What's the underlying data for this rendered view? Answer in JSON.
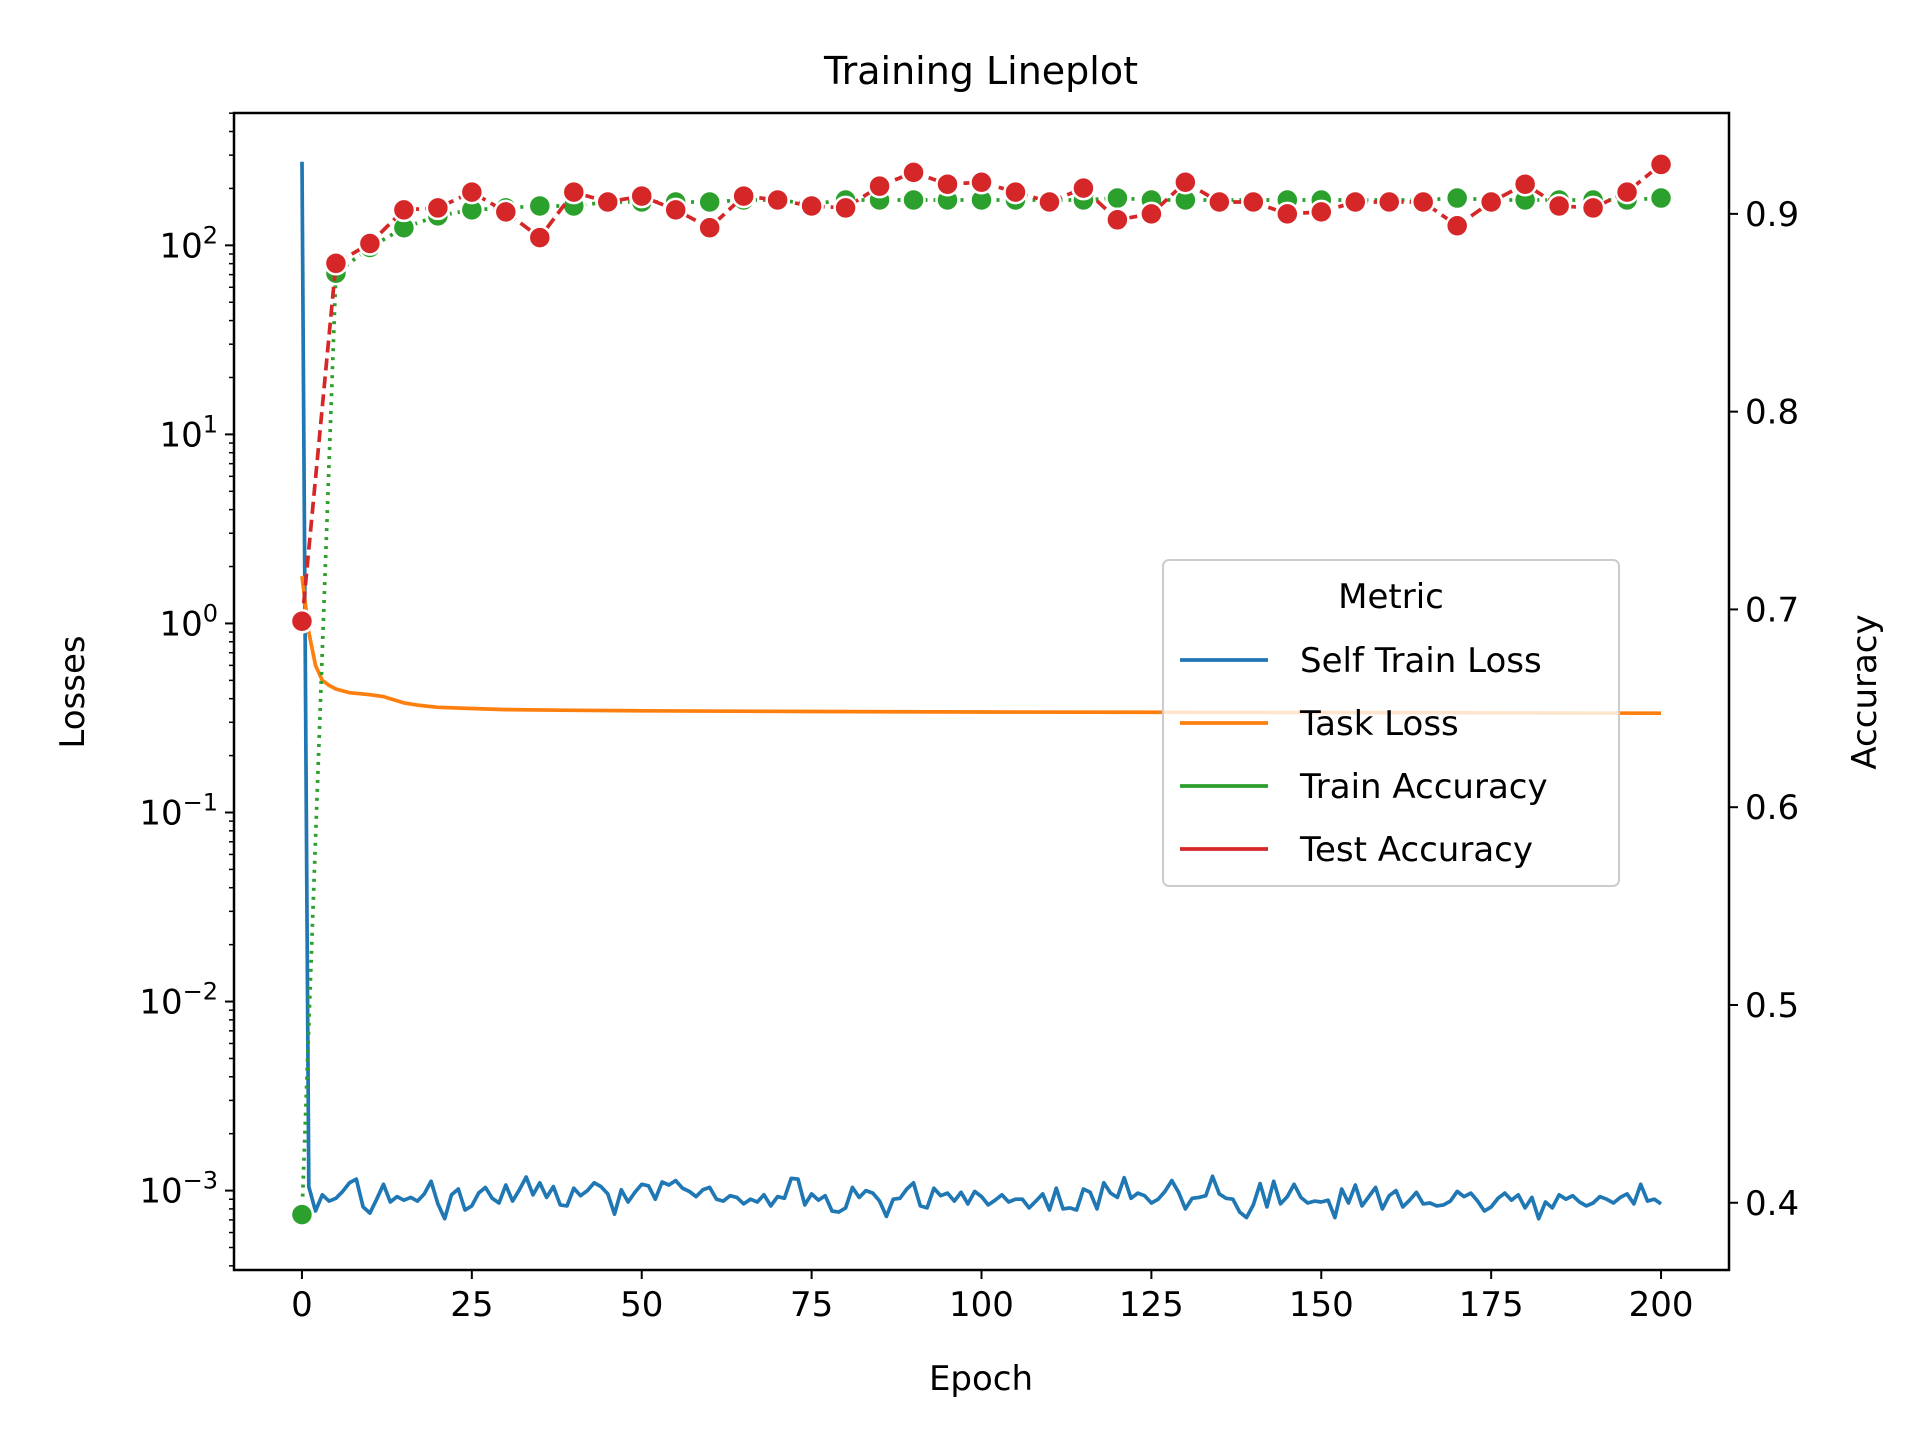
{
  "chart_data": {
    "type": "line",
    "title": "Training Lineplot",
    "xlabel": "Epoch",
    "ylabel_left": "Losses",
    "ylabel_right": "Accuracy",
    "xlim": [
      -10,
      210
    ],
    "xticks": [
      0,
      25,
      50,
      75,
      100,
      125,
      150,
      175,
      200
    ],
    "ylim_left_log10": [
      -3.42,
      2.7
    ],
    "yticks_left": [
      {
        "exp": "2",
        "value": 100
      },
      {
        "exp": "1",
        "value": 10
      },
      {
        "exp": "0",
        "value": 1
      },
      {
        "exp": "−1",
        "value": 0.1
      },
      {
        "exp": "−2",
        "value": 0.01
      },
      {
        "exp": "−3",
        "value": 0.001
      }
    ],
    "ytick_left_base": "10",
    "ylim_right": [
      0.366,
      0.951
    ],
    "yticks_right": [
      "0.4",
      "0.5",
      "0.6",
      "0.7",
      "0.8",
      "0.9"
    ],
    "grid": false,
    "legend": {
      "title": "Metric",
      "placement": "center-right",
      "entries": [
        "Self Train Loss",
        "Task Loss",
        "Train Accuracy",
        "Test Accuracy"
      ]
    },
    "colors": {
      "self_train_loss": "#1f77b4",
      "task_loss": "#ff7f0e",
      "train_accuracy": "#2ca02c",
      "test_accuracy": "#d62728"
    },
    "series": [
      {
        "name": "Self Train Loss",
        "axis": "left",
        "x_start": 0,
        "x_step": 1,
        "values": [
          277,
          0.00105,
          0.00078,
          0.00095,
          0.00088,
          0.00091,
          0.00099,
          0.0011,
          0.00115,
          0.00082,
          0.00076,
          0.0009,
          0.00108,
          0.00087,
          0.00093,
          0.00089,
          0.00092,
          0.00088,
          0.00096,
          0.00112,
          0.00085,
          0.00071,
          0.00095,
          0.00102,
          0.00079,
          0.00083,
          0.00097,
          0.00104,
          0.00091,
          0.00086,
          0.00107,
          0.00088,
          0.00101,
          0.00118,
          0.00095,
          0.0011,
          0.00092,
          0.00105,
          0.00084,
          0.00083,
          0.00103,
          0.00094,
          0.001,
          0.0011,
          0.00105,
          0.00096,
          0.00075,
          0.00101,
          0.00087,
          0.00098,
          0.00108,
          0.00106,
          0.0009,
          0.00111,
          0.00107,
          0.00113,
          0.00103,
          0.00099,
          0.00093,
          0.00101,
          0.00104,
          0.0009,
          0.00088,
          0.00094,
          0.00092,
          0.00085,
          0.0009,
          0.00087,
          0.00095,
          0.00083,
          0.00093,
          0.00091,
          0.00116,
          0.00115,
          0.00084,
          0.00096,
          0.00089,
          0.00094,
          0.00078,
          0.00077,
          0.00081,
          0.00104,
          0.00092,
          0.001,
          0.00097,
          0.00088,
          0.00073,
          0.0009,
          0.00091,
          0.00102,
          0.0011,
          0.00083,
          0.00081,
          0.00103,
          0.00094,
          0.00097,
          0.00088,
          0.00098,
          0.00085,
          0.00099,
          0.00093,
          0.00084,
          0.00089,
          0.00095,
          0.00087,
          0.0009,
          0.0009,
          0.00081,
          0.00088,
          0.00096,
          0.00079,
          0.00103,
          0.0008,
          0.00081,
          0.00079,
          0.00102,
          0.00098,
          0.0008,
          0.0011,
          0.00097,
          0.00092,
          0.00117,
          0.00091,
          0.00097,
          0.00094,
          0.00086,
          0.0009,
          0.00099,
          0.00113,
          0.00098,
          0.0008,
          0.00091,
          0.00092,
          0.00094,
          0.00119,
          0.00096,
          0.00091,
          0.0009,
          0.00077,
          0.00072,
          0.00084,
          0.00109,
          0.00082,
          0.00112,
          0.00085,
          0.00093,
          0.00108,
          0.00092,
          0.00086,
          0.00088,
          0.00087,
          0.00089,
          0.00072,
          0.00102,
          0.00086,
          0.00107,
          0.00083,
          0.00093,
          0.00104,
          0.0008,
          0.00094,
          0.001,
          0.00082,
          0.00089,
          0.00098,
          0.00085,
          0.00086,
          0.00083,
          0.00084,
          0.00088,
          0.00099,
          0.00093,
          0.00097,
          0.00088,
          0.00078,
          0.00082,
          0.00091,
          0.00097,
          0.00089,
          0.00095,
          0.00081,
          0.00092,
          0.00071,
          0.00087,
          0.00081,
          0.00095,
          0.0009,
          0.00094,
          0.00087,
          0.00083,
          0.00086,
          0.00093,
          0.0009,
          0.00086,
          0.00092,
          0.00096,
          0.00085,
          0.00108,
          0.00088,
          0.0009,
          0.00085
        ]
      },
      {
        "name": "Task Loss",
        "axis": "left",
        "x": [
          0,
          1,
          2,
          3,
          4,
          5,
          7,
          10,
          12,
          15,
          17,
          20,
          25,
          30,
          40,
          50,
          75,
          100,
          150,
          200
        ],
        "values": [
          1.78,
          0.9,
          0.6,
          0.5,
          0.47,
          0.45,
          0.43,
          0.42,
          0.41,
          0.38,
          0.37,
          0.36,
          0.355,
          0.35,
          0.347,
          0.345,
          0.342,
          0.34,
          0.338,
          0.335
        ]
      },
      {
        "name": "Train Accuracy",
        "axis": "right",
        "x_start": 0,
        "x_step": 5,
        "values": [
          0.394,
          0.87,
          0.883,
          0.893,
          0.899,
          0.902,
          0.903,
          0.904,
          0.904,
          0.906,
          0.906,
          0.906,
          0.906,
          0.907,
          0.907,
          0.905,
          0.907,
          0.907,
          0.907,
          0.907,
          0.907,
          0.907,
          0.907,
          0.907,
          0.908,
          0.907,
          0.907,
          0.907,
          0.907,
          0.907,
          0.907,
          0.907,
          0.907,
          0.907,
          0.908,
          0.907,
          0.907,
          0.907,
          0.907,
          0.907,
          0.908
        ]
      },
      {
        "name": "Test Accuracy",
        "axis": "right",
        "x_start": 0,
        "x_step": 5,
        "values": [
          0.694,
          0.875,
          0.885,
          0.902,
          0.903,
          0.911,
          0.901,
          0.888,
          0.911,
          0.906,
          0.909,
          0.902,
          0.893,
          0.909,
          0.907,
          0.904,
          0.903,
          0.914,
          0.921,
          0.915,
          0.916,
          0.911,
          0.906,
          0.913,
          0.897,
          0.9,
          0.916,
          0.906,
          0.906,
          0.9,
          0.901,
          0.906,
          0.906,
          0.906,
          0.894,
          0.906,
          0.915,
          0.904,
          0.903,
          0.911,
          0.925
        ]
      }
    ]
  }
}
